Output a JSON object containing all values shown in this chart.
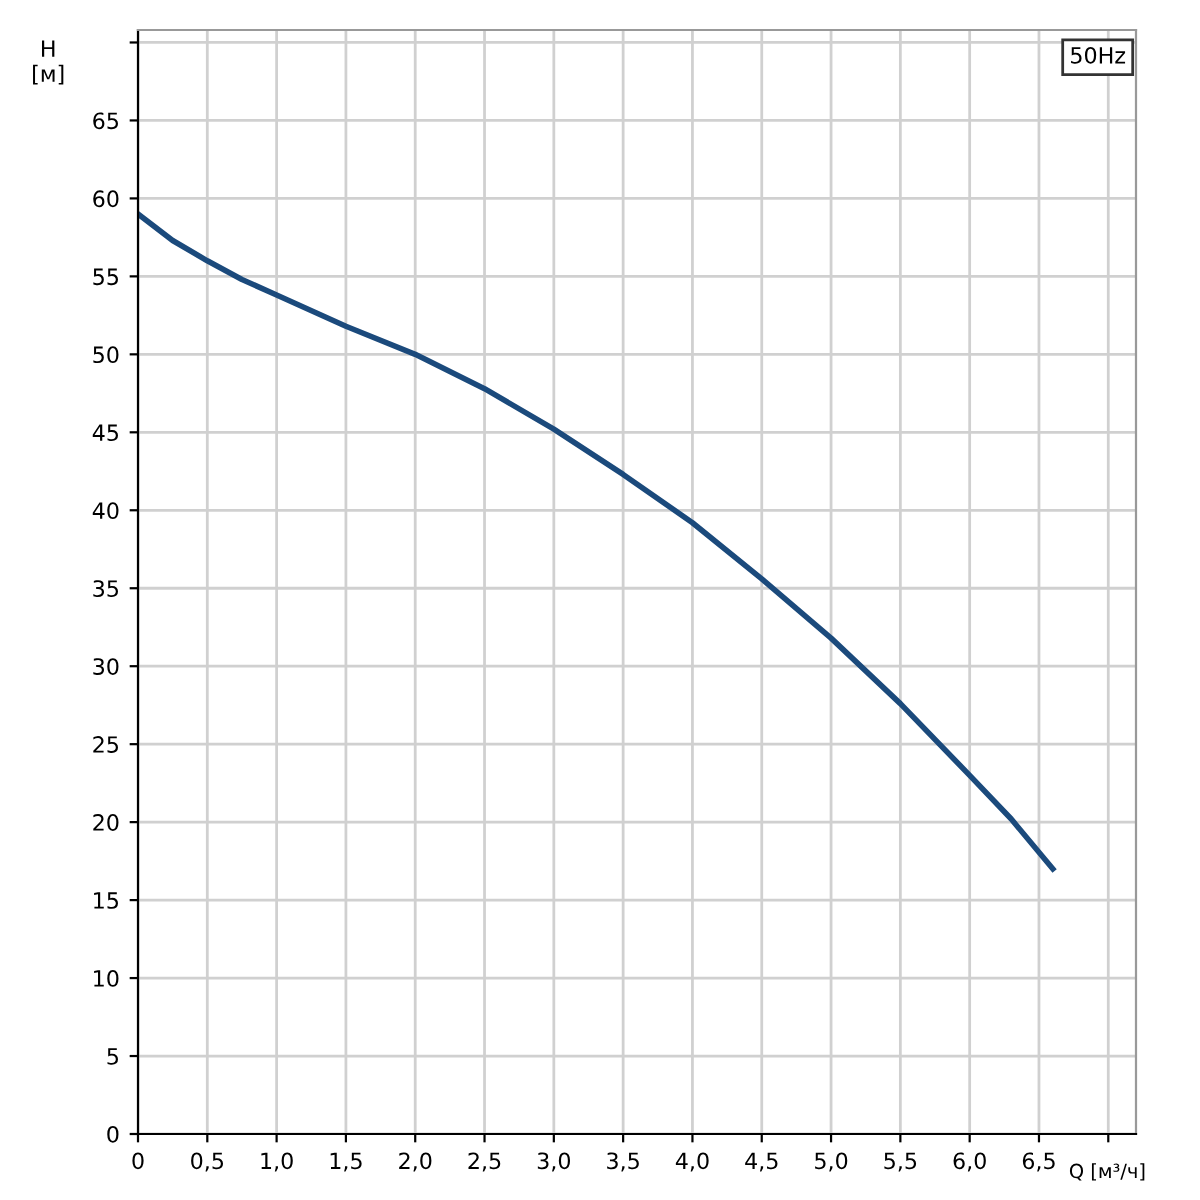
{
  "chart_data": {
    "type": "line",
    "xlabel": "Q [м³/ч]",
    "ylabel": "H\n[м]",
    "annotations": [
      "50Hz"
    ],
    "series": [
      {
        "color": "#1b4a7c",
        "x": [
          0,
          0.25,
          0.5,
          0.75,
          1.0,
          1.5,
          2.0,
          2.5,
          3.0,
          3.5,
          4.0,
          4.5,
          5.0,
          5.5,
          6.0,
          6.3,
          6.6
        ],
        "values": [
          59,
          57.3,
          56,
          54.8,
          53.8,
          51.8,
          50,
          47.8,
          45.2,
          42.3,
          39.2,
          35.6,
          31.8,
          27.6,
          23,
          20.2,
          17
        ]
      }
    ],
    "xlim": [
      0,
      7.2
    ],
    "xticks": [
      0,
      {
        "value": 0.5,
        "label": "0,5"
      },
      {
        "value": 1,
        "label": "1,0"
      },
      {
        "value": 1.5,
        "label": "1,5"
      },
      {
        "value": 2,
        "label": "2,0"
      },
      {
        "value": 2.5,
        "label": "2,5"
      },
      {
        "value": 3,
        "label": "3,0"
      },
      {
        "value": 3.5,
        "label": "3,5"
      },
      {
        "value": 4,
        "label": "4,0"
      },
      {
        "value": 4.5,
        "label": "4,5"
      },
      {
        "value": 5,
        "label": "5,0"
      },
      {
        "value": 5.5,
        "label": "5,5"
      },
      {
        "value": 6,
        "label": "6,0"
      },
      {
        "value": 6.5,
        "label": "6,5"
      },
      {
        "value": 7,
        "label": null
      }
    ],
    "ylim": [
      0,
      70.8
    ],
    "yticks": [
      0,
      5,
      10,
      15,
      20,
      25,
      30,
      35,
      40,
      45,
      50,
      55,
      60,
      65,
      {
        "value": 70,
        "label": null
      }
    ],
    "grid": true,
    "legend": false,
    "marker": "none",
    "line_style": "solid"
  }
}
